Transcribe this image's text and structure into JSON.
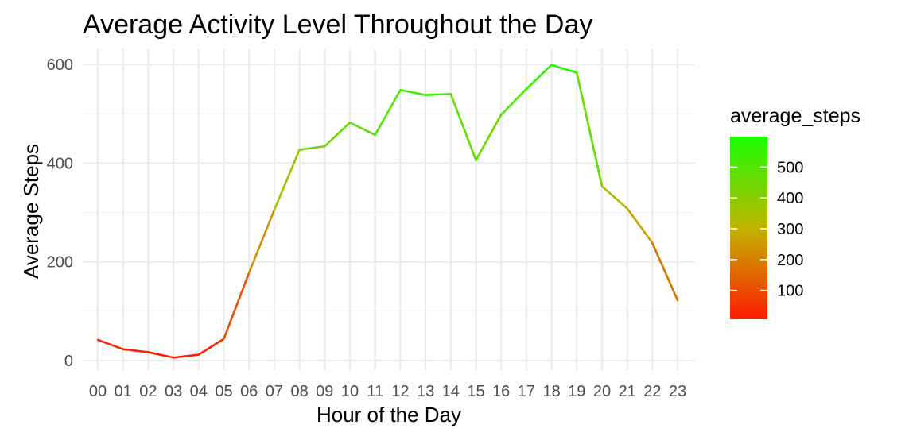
{
  "chart_data": {
    "type": "line",
    "title": "Average Activity Level Throughout the Day",
    "xlabel": "Hour of the Day",
    "ylabel": "Average Steps",
    "categories": [
      "00",
      "01",
      "02",
      "03",
      "04",
      "05",
      "06",
      "07",
      "08",
      "09",
      "10",
      "11",
      "12",
      "13",
      "14",
      "15",
      "16",
      "17",
      "18",
      "19",
      "20",
      "21",
      "22",
      "23"
    ],
    "series": [
      {
        "values": [
          42,
          23,
          17,
          6,
          12,
          44,
          178,
          305,
          427,
          434,
          482,
          457,
          548,
          538,
          540,
          406,
          498,
          550,
          599,
          583,
          353,
          308,
          238,
          122
        ]
      }
    ],
    "ylim": [
      -15,
      625
    ],
    "yticks": [
      0,
      200,
      400,
      600
    ],
    "grid": true,
    "legend": {
      "title": "average_steps",
      "position": "right",
      "ticks": [
        100,
        200,
        300,
        400,
        500
      ],
      "range": [
        6,
        599
      ],
      "colors": {
        "low": "#ff1a00",
        "mid": "#c0b400",
        "high": "#1aff00"
      }
    }
  }
}
